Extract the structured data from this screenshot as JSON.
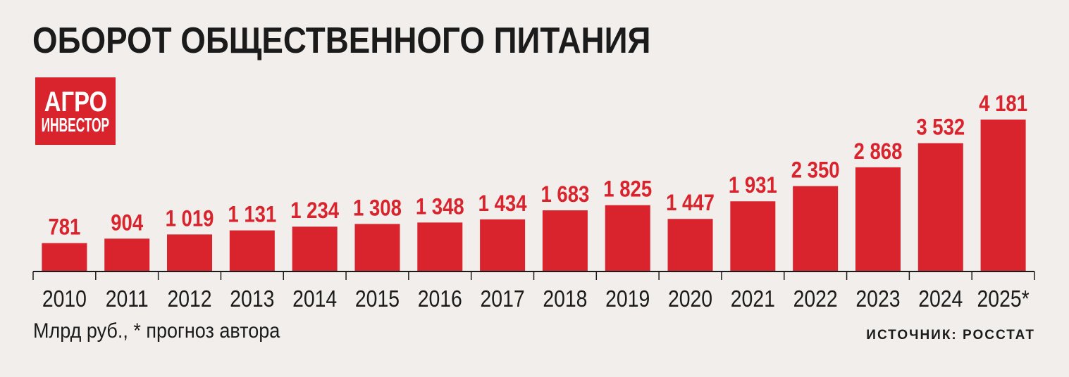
{
  "chart_data": {
    "type": "bar",
    "title": "ОБОРОТ ОБЩЕСТВЕННОГО ПИТАНИЯ",
    "categories": [
      "2010",
      "2011",
      "2012",
      "2013",
      "2014",
      "2015",
      "2016",
      "2017",
      "2018",
      "2019",
      "2020",
      "2021",
      "2022",
      "2023",
      "2024",
      "2025*"
    ],
    "values": [
      781,
      904,
      1019,
      1131,
      1234,
      1308,
      1348,
      1434,
      1683,
      1825,
      1447,
      1931,
      2350,
      2868,
      3532,
      4181
    ],
    "value_labels": [
      "781",
      "904",
      "1 019",
      "1 131",
      "1 234",
      "1 308",
      "1 348",
      "1 434",
      "1 683",
      "1 825",
      "1 447",
      "1 931",
      "2 350",
      "2 868",
      "3 532",
      "4 181"
    ],
    "bar_color": "#d9232d",
    "label_color": "#d9232d",
    "axis_color": "#1b1b1b",
    "grid": false,
    "note": "Млрд руб., * прогноз автора",
    "source": "ИСТОЧНИК: РОССТАТ"
  },
  "logo": {
    "line1": "АГРО",
    "line2": "ИНВЕСТОР",
    "color": "#d9232d"
  }
}
